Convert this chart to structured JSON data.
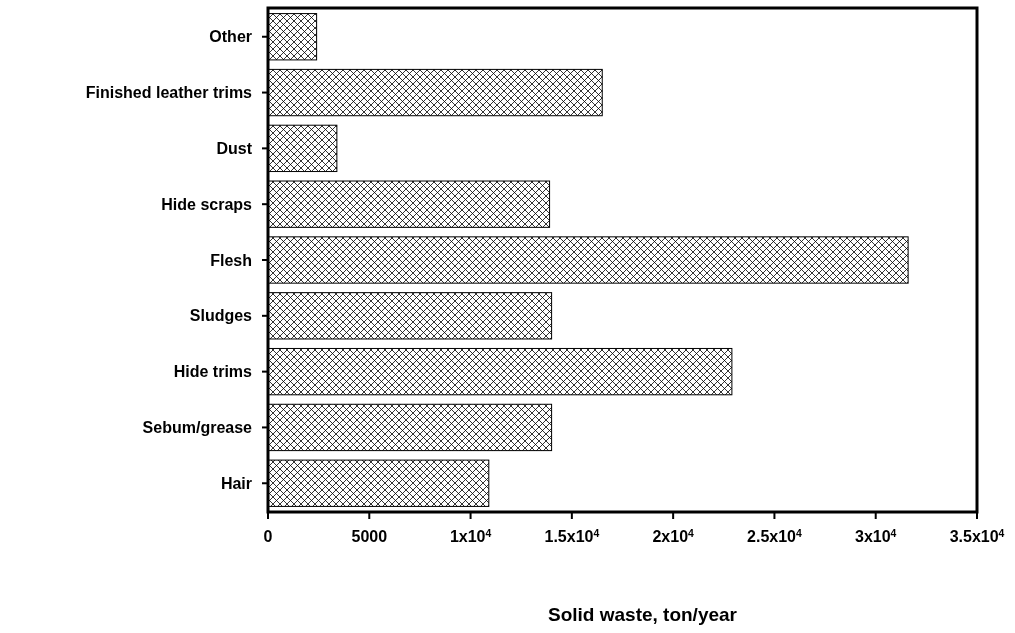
{
  "chart_data": {
    "type": "bar",
    "orientation": "horizontal",
    "xlabel": "Solid waste, ton/year",
    "categories": [
      "Other",
      "Finished leather trims",
      "Dust",
      "Hide scraps",
      "Flesh",
      "Sludges",
      "Hide trims",
      "Sebum/grease",
      "Hair"
    ],
    "values": [
      2400,
      16500,
      3400,
      13900,
      31600,
      14000,
      22900,
      14000,
      10900
    ],
    "color": "#000000",
    "xlim": [
      0,
      35000
    ],
    "xticks": [
      0,
      5000,
      {
        "value": 10000,
        "label": "1x10$^{4}$"
      },
      {
        "value": 15000,
        "label": "1.5x10$^{4}$"
      },
      {
        "value": 20000,
        "label": "2x10$^{4}$"
      },
      {
        "value": 25000,
        "label": "2.5x10$^{4}$"
      },
      {
        "value": 30000,
        "label": "3x10$^{4}$"
      },
      {
        "value": 35000,
        "label": "3.5x10$^{4}$"
      }
    ],
    "grid": false
  }
}
